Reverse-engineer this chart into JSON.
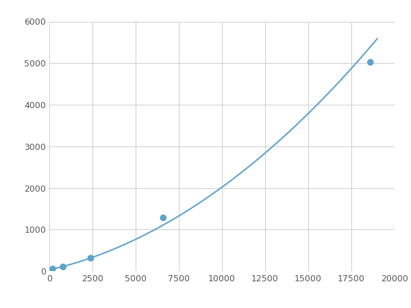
{
  "x_points": [
    200,
    800,
    2400,
    6600,
    18600
  ],
  "y_points": [
    50,
    100,
    310,
    1280,
    5020
  ],
  "line_color": "#5BA3C9",
  "marker_color": "#5BA3C9",
  "marker_size": 7,
  "xlim": [
    0,
    20000
  ],
  "ylim": [
    0,
    6000
  ],
  "xticks": [
    0,
    2500,
    5000,
    7500,
    10000,
    12500,
    15000,
    17500,
    20000
  ],
  "yticks": [
    0,
    1000,
    2000,
    3000,
    4000,
    5000,
    6000
  ],
  "grid_color": "#CCCCCC",
  "background_color": "#FFFFFF",
  "figsize": [
    6.0,
    4.5
  ],
  "dpi": 100
}
